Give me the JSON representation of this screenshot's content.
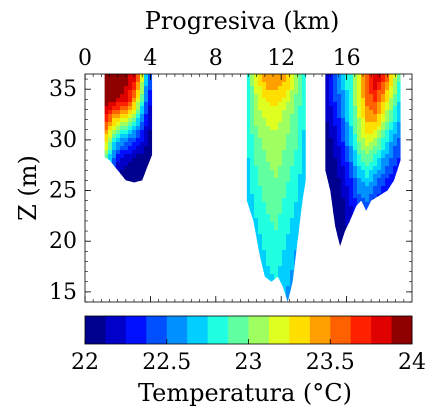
{
  "chart_data": {
    "type": "heatmap",
    "title": "",
    "xlabel": "Progresiva (km)",
    "ylabel": "Z (m)",
    "xlim": [
      0,
      20
    ],
    "ylim": [
      14,
      36.5
    ],
    "x_ticks": [
      0,
      4,
      8,
      12,
      16
    ],
    "x_tick_labels": [
      "0",
      "4",
      "8",
      "12",
      "16"
    ],
    "y_ticks": [
      15,
      20,
      25,
      30,
      35
    ],
    "y_tick_labels": [
      "15",
      "20",
      "25",
      "30",
      "35"
    ],
    "x_axis_position": "top",
    "grid": false,
    "colormap": "jet",
    "colorbar": {
      "label": "Temperatura (°C)",
      "placement": "bottom",
      "range": [
        22,
        24
      ],
      "ticks": [
        22,
        22.5,
        23,
        23.5,
        24
      ],
      "tick_labels": [
        "22",
        "22.5",
        "23",
        "23.5",
        "24"
      ],
      "levels": 16,
      "colors": [
        "#00008f",
        "#0000c8",
        "#0010ff",
        "#0050ff",
        "#0090ff",
        "#00cfff",
        "#20ffdf",
        "#60ffa0",
        "#9fff60",
        "#dfff20",
        "#ffdf00",
        "#ff9f00",
        "#ff6000",
        "#ff2000",
        "#df0000",
        "#8f0000"
      ]
    },
    "sections": [
      {
        "x_start": 1.2,
        "x_end": 4.1,
        "bottom_profile": [
          [
            1.2,
            28.3
          ],
          [
            1.5,
            28.0
          ],
          [
            2.0,
            27.0
          ],
          [
            2.5,
            26.0
          ],
          [
            3.0,
            25.8
          ],
          [
            3.5,
            26.0
          ],
          [
            3.8,
            27.3
          ],
          [
            4.1,
            28.5
          ]
        ],
        "temperature_rows": [
          {
            "z": 36.0,
            "temps": [
              23.95,
              23.95,
              23.95,
              23.95,
              23.9,
              23.8,
              23.4,
              22.7,
              22.3
            ]
          },
          {
            "z": 34.0,
            "temps": [
              23.95,
              23.95,
              23.9,
              23.85,
              23.75,
              23.5,
              23.1,
              22.5,
              22.2
            ]
          },
          {
            "z": 32.0,
            "temps": [
              23.7,
              23.5,
              23.3,
              23.2,
              23.1,
              22.9,
              22.6,
              22.3,
              22.1
            ]
          },
          {
            "z": 30.0,
            "temps": [
              23.4,
              23.0,
              22.7,
              22.6,
              22.5,
              22.4,
              22.3,
              22.15,
              22.05
            ]
          },
          {
            "z": 28.0,
            "temps": [
              23.0,
              22.6,
              22.3,
              22.2,
              22.15,
              22.1,
              22.05,
              22.05,
              22.05
            ]
          },
          {
            "z": 26.0,
            "temps": [
              22.5,
              22.3,
              22.1,
              22.05,
              22.05,
              22.05,
              22.05,
              22.05,
              22.05
            ]
          }
        ]
      },
      {
        "x_start": 9.9,
        "x_end": 13.5,
        "bottom_profile": [
          [
            9.9,
            24.0
          ],
          [
            10.3,
            22.0
          ],
          [
            10.7,
            18.5
          ],
          [
            11.0,
            16.5
          ],
          [
            11.4,
            16.0
          ],
          [
            11.8,
            16.5
          ],
          [
            12.1,
            15.5
          ],
          [
            12.4,
            14.0
          ],
          [
            12.7,
            16.0
          ],
          [
            13.0,
            20.0
          ],
          [
            13.3,
            24.0
          ],
          [
            13.5,
            26.0
          ]
        ],
        "temperature_rows": [
          {
            "z": 36.0,
            "temps": [
              22.8,
              23.2,
              23.45,
              23.5,
              23.4,
              23.05,
              22.8
            ]
          },
          {
            "z": 33.0,
            "temps": [
              22.8,
              23.1,
              23.2,
              23.2,
              23.1,
              22.95,
              22.75
            ]
          },
          {
            "z": 30.0,
            "temps": [
              22.75,
              22.95,
              23.05,
              23.1,
              23.0,
              22.9,
              22.7
            ]
          },
          {
            "z": 26.0,
            "temps": [
              22.7,
              22.85,
              22.95,
              23.0,
              22.9,
              22.8,
              22.65
            ]
          },
          {
            "z": 22.0,
            "temps": [
              22.65,
              22.75,
              22.85,
              22.9,
              22.8,
              22.7,
              22.6
            ]
          },
          {
            "z": 18.0,
            "temps": [
              22.6,
              22.65,
              22.75,
              22.8,
              22.7,
              22.6,
              22.55
            ]
          },
          {
            "z": 14.0,
            "temps": [
              22.55,
              22.6,
              22.65,
              22.7,
              22.6,
              22.55,
              22.5
            ]
          }
        ]
      },
      {
        "x_start": 14.7,
        "x_end": 19.3,
        "bottom_profile": [
          [
            14.7,
            27.0
          ],
          [
            15.0,
            25.0
          ],
          [
            15.3,
            21.5
          ],
          [
            15.6,
            19.5
          ],
          [
            15.9,
            21.0
          ],
          [
            16.2,
            22.0
          ],
          [
            16.6,
            23.5
          ],
          [
            16.9,
            24.0
          ],
          [
            17.2,
            23.0
          ],
          [
            17.5,
            24.0
          ],
          [
            18.0,
            24.5
          ],
          [
            18.5,
            25.0
          ],
          [
            18.9,
            26.0
          ],
          [
            19.3,
            28.0
          ]
        ],
        "temperature_rows": [
          {
            "z": 36.0,
            "temps": [
              22.2,
              22.45,
              22.65,
              22.85,
              23.2,
              23.6,
              23.85,
              23.65,
              23.3,
              22.8
            ]
          },
          {
            "z": 34.0,
            "temps": [
              22.15,
              22.35,
              22.55,
              22.85,
              23.2,
              23.55,
              23.65,
              23.4,
              23.05,
              22.7
            ]
          },
          {
            "z": 32.0,
            "temps": [
              22.1,
              22.25,
              22.45,
              22.75,
              23.1,
              23.4,
              23.45,
              23.15,
              22.85,
              22.6
            ]
          },
          {
            "z": 30.0,
            "temps": [
              22.05,
              22.15,
              22.35,
              22.65,
              23.0,
              23.2,
              23.1,
              22.85,
              22.6,
              22.45
            ]
          },
          {
            "z": 28.0,
            "temps": [
              22.05,
              22.1,
              22.25,
              22.5,
              22.8,
              22.95,
              22.8,
              22.6,
              22.45,
              22.35
            ]
          },
          {
            "z": 26.0,
            "temps": [
              22.05,
              22.05,
              22.15,
              22.35,
              22.6,
              22.7,
              22.55,
              22.4,
              22.3,
              22.25
            ]
          },
          {
            "z": 24.0,
            "temps": [
              22.05,
              22.05,
              22.1,
              22.25,
              22.45,
              22.5,
              22.35,
              22.25,
              22.2,
              22.15
            ]
          },
          {
            "z": 20.0,
            "temps": [
              22.05,
              22.05,
              22.05,
              22.1,
              22.2,
              22.25,
              22.15,
              22.1,
              22.1,
              22.1
            ]
          }
        ]
      }
    ]
  }
}
